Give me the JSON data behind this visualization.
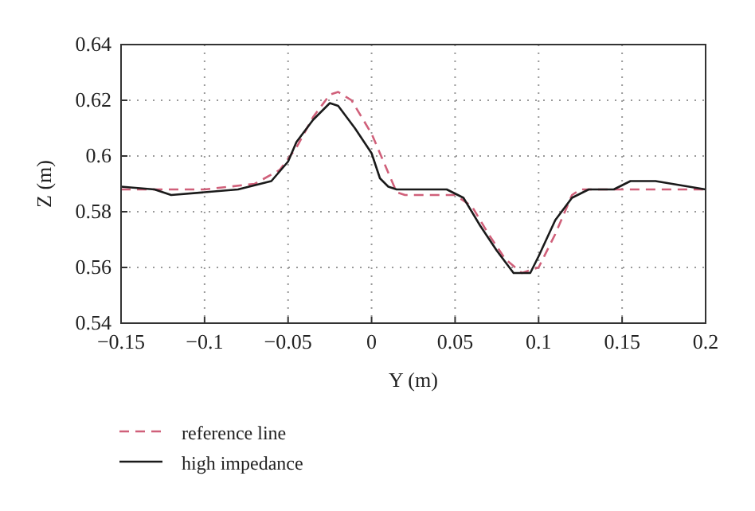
{
  "chart_data": {
    "type": "line",
    "xlabel": "Y (m)",
    "ylabel": "Z (m)",
    "xlim": [
      -0.15,
      0.2
    ],
    "ylim": [
      0.54,
      0.64
    ],
    "xticks": [
      -0.15,
      -0.1,
      -0.05,
      0,
      0.05,
      0.1,
      0.15,
      0.2
    ],
    "yticks": [
      0.54,
      0.56,
      0.58,
      0.6,
      0.62,
      0.64
    ],
    "grid": true,
    "legend": "bottom left",
    "series": [
      {
        "name": "reference line",
        "color": "#d0607a",
        "line_style": "dashed",
        "x": [
          -0.15,
          -0.1,
          -0.07,
          -0.055,
          -0.045,
          -0.035,
          -0.025,
          -0.02,
          -0.012,
          0,
          0.01,
          0.015,
          0.02,
          0.05,
          0.06,
          0.07,
          0.08,
          0.09,
          0.1,
          0.11,
          0.12,
          0.125,
          0.2
        ],
        "values": [
          0.588,
          0.588,
          0.59,
          0.595,
          0.603,
          0.614,
          0.622,
          0.623,
          0.62,
          0.608,
          0.594,
          0.587,
          0.586,
          0.586,
          0.582,
          0.572,
          0.563,
          0.558,
          0.56,
          0.572,
          0.586,
          0.588,
          0.588
        ]
      },
      {
        "name": "high impedance",
        "color": "#1a1a1a",
        "line_style": "solid",
        "x": [
          -0.15,
          -0.13,
          -0.12,
          -0.1,
          -0.08,
          -0.06,
          -0.05,
          -0.045,
          -0.035,
          -0.025,
          -0.02,
          -0.01,
          0,
          0.005,
          0.01,
          0.015,
          0.045,
          0.055,
          0.065,
          0.075,
          0.085,
          0.095,
          0.1,
          0.11,
          0.12,
          0.13,
          0.145,
          0.155,
          0.17,
          0.19,
          0.2
        ],
        "values": [
          0.589,
          0.588,
          0.586,
          0.587,
          0.588,
          0.591,
          0.598,
          0.605,
          0.613,
          0.619,
          0.618,
          0.61,
          0.601,
          0.592,
          0.589,
          0.588,
          0.588,
          0.585,
          0.575,
          0.566,
          0.558,
          0.558,
          0.564,
          0.577,
          0.585,
          0.588,
          0.588,
          0.591,
          0.591,
          0.589,
          0.588
        ]
      }
    ]
  }
}
